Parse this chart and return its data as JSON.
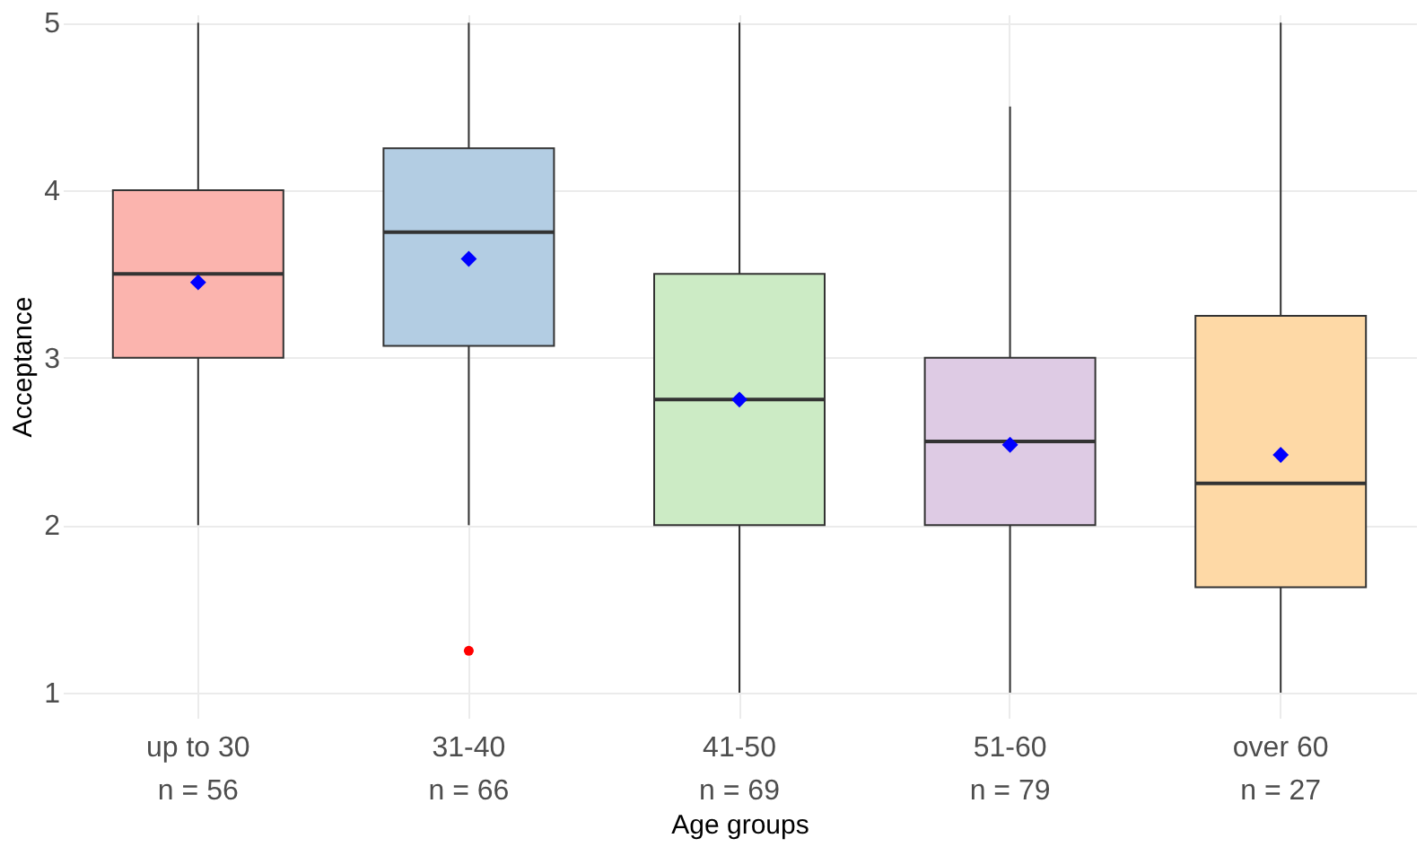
{
  "chart_data": {
    "type": "box",
    "xlabel": "Age groups",
    "ylabel": "Acceptance",
    "categories": [
      "up to 30\nn = 56",
      "31-40\nn = 66",
      "41-50\nn = 69",
      "51-60\nn = 79",
      "over 60\nn = 27"
    ],
    "colors": [
      "#fbb4ae",
      "#b3cde3",
      "#ccebc5",
      "#decbe4",
      "#fed9a6"
    ],
    "boxes": [
      {
        "low": 2,
        "q1": 3,
        "median": 3.5,
        "q3": 4,
        "high": 5,
        "mean": 3.45
      },
      {
        "low": 2,
        "q1": 3.07,
        "median": 3.75,
        "q3": 4.25,
        "high": 5,
        "mean": 3.59,
        "outliers": [
          1.25
        ]
      },
      {
        "low": 1,
        "q1": 2,
        "median": 2.75,
        "q3": 3.5,
        "high": 5,
        "mean": 2.75
      },
      {
        "low": 1,
        "q1": 2,
        "median": 2.5,
        "q3": 3,
        "high": 4.5,
        "mean": 2.48
      },
      {
        "low": 1,
        "q1": 1.63,
        "median": 2.25,
        "q3": 3.25,
        "high": 5,
        "mean": 2.42
      }
    ],
    "ylim": [
      0.85,
      5.05
    ],
    "yticks": [
      1,
      2,
      3,
      4,
      5
    ],
    "grid": true
  }
}
